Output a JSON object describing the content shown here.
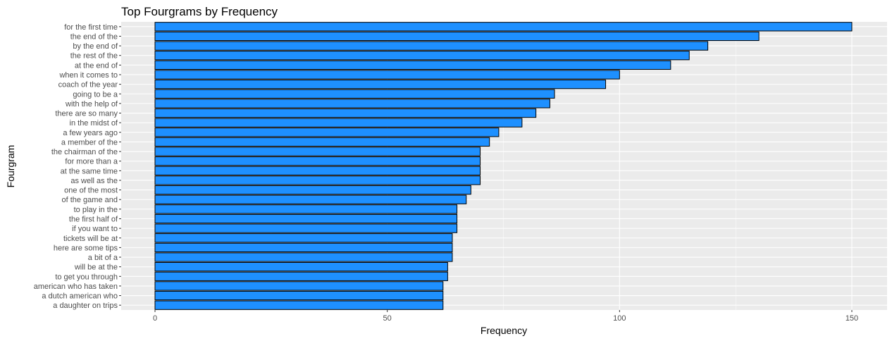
{
  "chart_data": {
    "type": "bar",
    "orientation": "horizontal",
    "title": "Top Fourgrams by Frequency",
    "xlabel": "Frequency",
    "ylabel": "Fourgram",
    "xlim": [
      0,
      157
    ],
    "x_ticks": [
      0,
      50,
      100,
      150
    ],
    "grid": true,
    "bar_color": "#1E90FF",
    "bar_outline": "#000000",
    "panel_background": "#EBEBEB",
    "categories": [
      "for the first time",
      "the end of the",
      "by the end of",
      "the rest of the",
      "at the end of",
      "when it comes to",
      "coach of the year",
      "going to be a",
      "with the help of",
      "there are so many",
      "in the midst of",
      "a few years ago",
      "a member of the",
      "the chairman of the",
      "for more than a",
      "at the same time",
      "as well as the",
      "one of the most",
      "of the game and",
      "to play in the",
      "the first half of",
      "if you want to",
      "tickets will be at",
      "here are some tips",
      "a bit of a",
      "will be at the",
      "to get you through",
      "american who has taken",
      "a dutch american who",
      "a daughter on trips"
    ],
    "values": [
      150,
      130,
      119,
      115,
      111,
      100,
      97,
      86,
      85,
      82,
      79,
      74,
      72,
      70,
      70,
      70,
      70,
      68,
      67,
      65,
      65,
      65,
      64,
      64,
      64,
      63,
      63,
      62,
      62,
      62
    ]
  }
}
